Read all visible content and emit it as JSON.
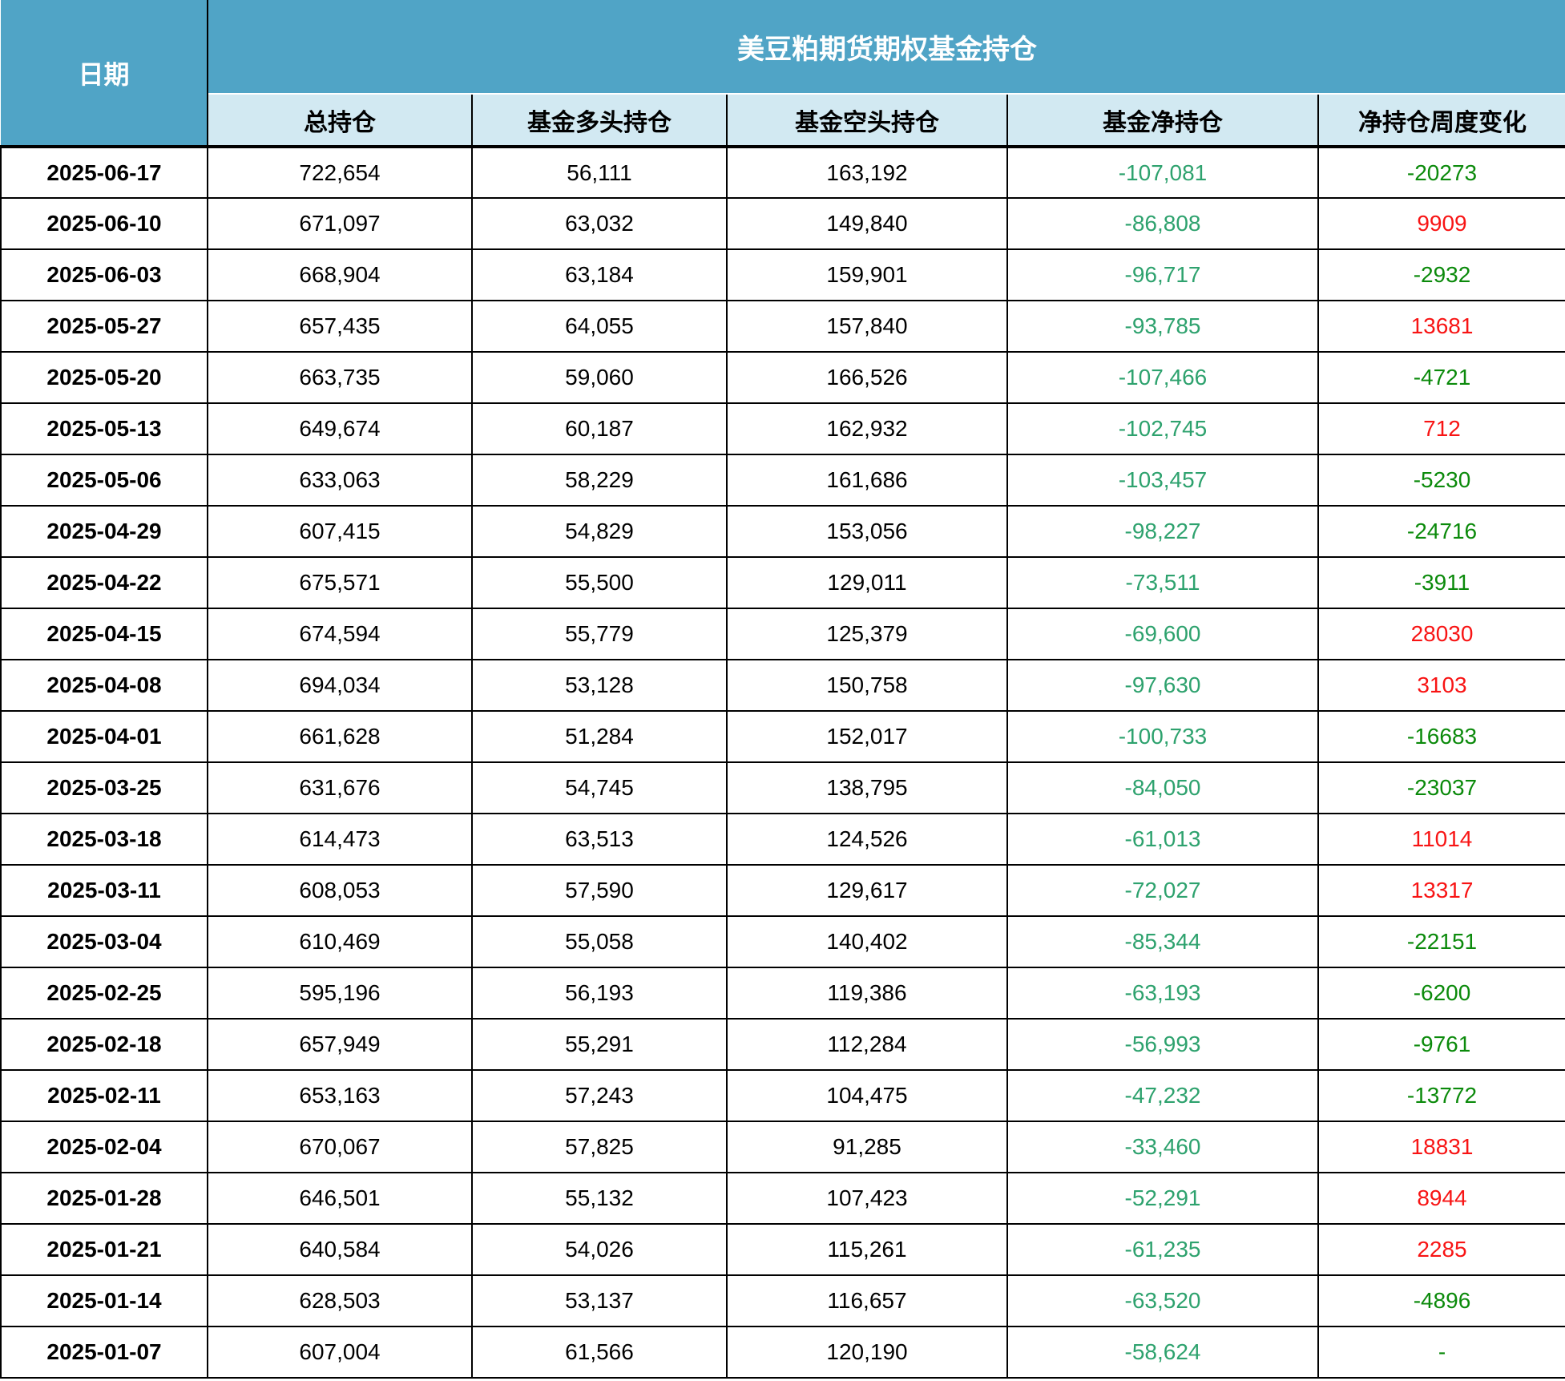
{
  "chart_data": {
    "type": "table",
    "title": "美豆粕期货期权基金持仓",
    "date_column_header": "日期",
    "columns": [
      "总持仓",
      "基金多头持仓",
      "基金空头持仓",
      "基金净持仓",
      "净持仓周度变化"
    ],
    "rows": [
      {
        "date": "2025-06-17",
        "total": "722,654",
        "long": "56,111",
        "short": "163,192",
        "net": "-107,081",
        "change": "-20273"
      },
      {
        "date": "2025-06-10",
        "total": "671,097",
        "long": "63,032",
        "short": "149,840",
        "net": "-86,808",
        "change": "9909"
      },
      {
        "date": "2025-06-03",
        "total": "668,904",
        "long": "63,184",
        "short": "159,901",
        "net": "-96,717",
        "change": "-2932"
      },
      {
        "date": "2025-05-27",
        "total": "657,435",
        "long": "64,055",
        "short": "157,840",
        "net": "-93,785",
        "change": "13681"
      },
      {
        "date": "2025-05-20",
        "total": "663,735",
        "long": "59,060",
        "short": "166,526",
        "net": "-107,466",
        "change": "-4721"
      },
      {
        "date": "2025-05-13",
        "total": "649,674",
        "long": "60,187",
        "short": "162,932",
        "net": "-102,745",
        "change": "712"
      },
      {
        "date": "2025-05-06",
        "total": "633,063",
        "long": "58,229",
        "short": "161,686",
        "net": "-103,457",
        "change": "-5230"
      },
      {
        "date": "2025-04-29",
        "total": "607,415",
        "long": "54,829",
        "short": "153,056",
        "net": "-98,227",
        "change": "-24716"
      },
      {
        "date": "2025-04-22",
        "total": "675,571",
        "long": "55,500",
        "short": "129,011",
        "net": "-73,511",
        "change": "-3911"
      },
      {
        "date": "2025-04-15",
        "total": "674,594",
        "long": "55,779",
        "short": "125,379",
        "net": "-69,600",
        "change": "28030"
      },
      {
        "date": "2025-04-08",
        "total": "694,034",
        "long": "53,128",
        "short": "150,758",
        "net": "-97,630",
        "change": "3103"
      },
      {
        "date": "2025-04-01",
        "total": "661,628",
        "long": "51,284",
        "short": "152,017",
        "net": "-100,733",
        "change": "-16683"
      },
      {
        "date": "2025-03-25",
        "total": "631,676",
        "long": "54,745",
        "short": "138,795",
        "net": "-84,050",
        "change": "-23037"
      },
      {
        "date": "2025-03-18",
        "total": "614,473",
        "long": "63,513",
        "short": "124,526",
        "net": "-61,013",
        "change": "11014"
      },
      {
        "date": "2025-03-11",
        "total": "608,053",
        "long": "57,590",
        "short": "129,617",
        "net": "-72,027",
        "change": "13317"
      },
      {
        "date": "2025-03-04",
        "total": "610,469",
        "long": "55,058",
        "short": "140,402",
        "net": "-85,344",
        "change": "-22151"
      },
      {
        "date": "2025-02-25",
        "total": "595,196",
        "long": "56,193",
        "short": "119,386",
        "net": "-63,193",
        "change": "-6200"
      },
      {
        "date": "2025-02-18",
        "total": "657,949",
        "long": "55,291",
        "short": "112,284",
        "net": "-56,993",
        "change": "-9761"
      },
      {
        "date": "2025-02-11",
        "total": "653,163",
        "long": "57,243",
        "short": "104,475",
        "net": "-47,232",
        "change": "-13772"
      },
      {
        "date": "2025-02-04",
        "total": "670,067",
        "long": "57,825",
        "short": "91,285",
        "net": "-33,460",
        "change": "18831"
      },
      {
        "date": "2025-01-28",
        "total": "646,501",
        "long": "55,132",
        "short": "107,423",
        "net": "-52,291",
        "change": "8944"
      },
      {
        "date": "2025-01-21",
        "total": "640,584",
        "long": "54,026",
        "short": "115,261",
        "net": "-61,235",
        "change": "2285"
      },
      {
        "date": "2025-01-14",
        "total": "628,503",
        "long": "53,137",
        "short": "116,657",
        "net": "-63,520",
        "change": "-4896"
      },
      {
        "date": "2025-01-07",
        "total": "607,004",
        "long": "61,566",
        "short": "120,190",
        "net": "-58,624",
        "change": "-"
      }
    ]
  },
  "colors": {
    "header_bg": "#50A4C6",
    "subheader_bg": "#D2E9F2",
    "net_green": "#2EA26E",
    "change_green": "#0B8A0B",
    "change_red": "#F81414",
    "grid": "#000000",
    "header_text": "#FFFFFF",
    "text": "#000000"
  }
}
